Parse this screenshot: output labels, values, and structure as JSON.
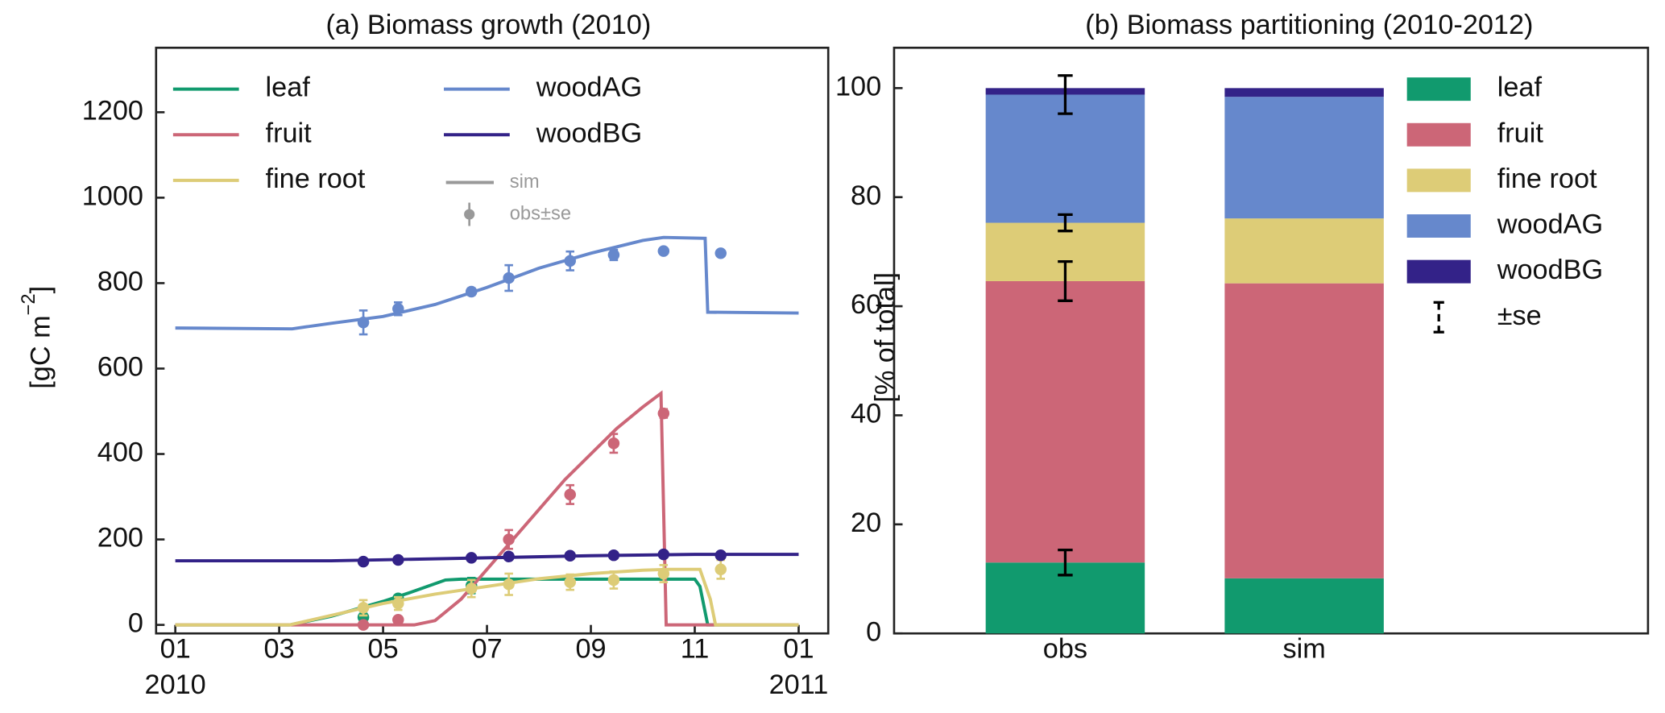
{
  "chart_data": [
    {
      "type": "line",
      "title": "(a)  Biomass growth (2010)",
      "ylabel": [
        "[gC m",
        "−2",
        "]"
      ],
      "xlim": [
        -0.37,
        12.57
      ],
      "ylim": [
        -20,
        1351
      ],
      "xticks": [
        {
          "value": 0,
          "label": "01"
        },
        {
          "value": 2,
          "label": "03"
        },
        {
          "value": 4,
          "label": "05"
        },
        {
          "value": 6,
          "label": "07"
        },
        {
          "value": 8,
          "label": "09"
        },
        {
          "value": 10,
          "label": "11"
        },
        {
          "value": 12,
          "label": "01"
        }
      ],
      "xtick_years": [
        {
          "value": 0,
          "label": "2010"
        },
        {
          "value": 12,
          "label": "2011"
        }
      ],
      "yticks": [
        0,
        200,
        400,
        600,
        800,
        1000,
        1200
      ],
      "legend_loc": "upper left",
      "legend_styles": [
        {
          "label": "sim",
          "color": "#999999"
        },
        {
          "label": "obs±se",
          "color": "#999999"
        }
      ],
      "series": [
        {
          "name": "leaf",
          "color": "#119a6e",
          "x": [
            0,
            2.2,
            3,
            4,
            4.5,
            5.2,
            5.5,
            10,
            10.1,
            10.25,
            12
          ],
          "values": [
            0,
            0,
            20,
            55,
            75,
            105,
            107,
            107,
            90,
            0,
            0
          ],
          "obs": {
            "x": [
              3.62,
              4.29,
              5.7
            ],
            "values": [
              18,
              62,
              92
            ],
            "errors": [
              8,
              6,
              18
            ]
          }
        },
        {
          "name": "fruit",
          "color": "#cc6677",
          "x": [
            0,
            4.6,
            5,
            5.5,
            6,
            6.5,
            7,
            7.5,
            8,
            8.5,
            9,
            9.35,
            9.45,
            12
          ],
          "values": [
            0,
            0,
            10,
            60,
            130,
            200,
            270,
            340,
            400,
            460,
            510,
            542,
            0,
            0
          ],
          "obs": {
            "x": [
              3.62,
              4.29,
              6.42,
              7.6,
              8.44,
              9.4
            ],
            "values": [
              0,
              12,
              200,
              305,
              425,
              495
            ],
            "errors": [
              4,
              6,
              22,
              22,
              22,
              10
            ]
          }
        },
        {
          "name": "fine root",
          "color": "#ddcc77",
          "x": [
            0,
            2.2,
            3,
            4,
            5,
            6,
            7,
            8,
            9,
            9.5,
            10.1,
            10.3,
            10.4,
            12
          ],
          "values": [
            0,
            0,
            22,
            50,
            72,
            90,
            108,
            120,
            128,
            130,
            130,
            60,
            0,
            0
          ],
          "obs": {
            "x": [
              3.62,
              4.29,
              5.7,
              6.42,
              7.6,
              8.44,
              9.4,
              10.5
            ],
            "values": [
              40,
              50,
              85,
              95,
              100,
              105,
              120,
              130
            ],
            "errors": [
              18,
              15,
              20,
              25,
              18,
              20,
              20,
              22
            ]
          }
        },
        {
          "name": "woodAG",
          "color": "#6688cc",
          "x": [
            0,
            2.25,
            3,
            4,
            5,
            6,
            7,
            8,
            9,
            9.4,
            10.2,
            10.25,
            12
          ],
          "values": [
            695,
            693,
            706,
            722,
            750,
            790,
            835,
            870,
            900,
            907,
            905,
            732,
            730
          ],
          "obs": {
            "x": [
              3.62,
              4.29,
              5.7,
              6.42,
              7.6,
              8.44,
              9.4,
              10.5
            ],
            "values": [
              708,
              740,
              780,
              812,
              852,
              866,
              875,
              870
            ],
            "errors": [
              28,
              15,
              8,
              30,
              22,
              12,
              4,
              4
            ]
          }
        },
        {
          "name": "woodBG",
          "color": "#332288",
          "x": [
            0,
            3,
            6,
            8,
            10,
            12
          ],
          "values": [
            150,
            150,
            157,
            162,
            165,
            165
          ],
          "obs": {
            "x": [
              3.62,
              4.29,
              5.7,
              6.42,
              7.6,
              8.44,
              9.4,
              10.5
            ],
            "values": [
              148,
              152,
              157,
              160,
              162,
              163,
              165,
              163
            ],
            "errors": [
              4,
              4,
              4,
              4,
              4,
              4,
              4,
              4
            ]
          }
        }
      ]
    },
    {
      "type": "stacked_bar",
      "title": "(b)  Biomass partitioning (2010-2012)",
      "ylabel": "[% of total]",
      "categories": [
        "obs",
        "sim"
      ],
      "ylim": [
        0,
        107.4
      ],
      "yticks": [
        0,
        20,
        40,
        60,
        80,
        100
      ],
      "legend_loc": "upper right",
      "error_label": "±se",
      "series": [
        {
          "name": "leaf",
          "color": "#119a6e",
          "values": [
            13.0,
            10.1
          ],
          "errors": [
            2.3,
            null
          ]
        },
        {
          "name": "fruit",
          "color": "#cc6677",
          "values": [
            51.6,
            54.1
          ],
          "errors": [
            3.6,
            null
          ]
        },
        {
          "name": "fine root",
          "color": "#ddcc77",
          "values": [
            10.7,
            11.9
          ],
          "errors": [
            1.5,
            null
          ]
        },
        {
          "name": "woodAG",
          "color": "#6688cc",
          "values": [
            23.5,
            22.3
          ],
          "errors": [
            3.5,
            null
          ]
        },
        {
          "name": "woodBG",
          "color": "#332288",
          "values": [
            1.2,
            1.6
          ],
          "errors": [
            null,
            null
          ]
        }
      ]
    }
  ]
}
